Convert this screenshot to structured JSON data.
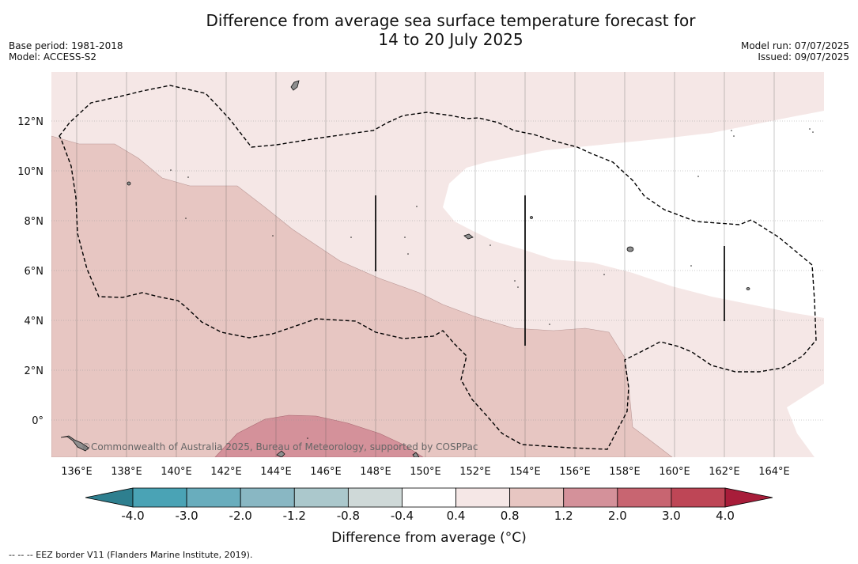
{
  "title_line1": "Difference from average sea surface temperature forecast for",
  "title_line2": "14 to 20 July 2025",
  "base_period": "Base period: 1981-2018",
  "model": "Model: ACCESS-S2",
  "model_run": "Model run: 07/07/2025",
  "issued": "Issued: 09/07/2025",
  "copyright": "©Commonwealth of Australia 2025, Bureau of Meteorology, supported by COSPPac",
  "colorbar": {
    "label": "Difference from average (°C)",
    "ticks": [
      "-4.0",
      "-3.0",
      "-2.0",
      "-1.2",
      "-0.8",
      "-0.4",
      "0.4",
      "0.8",
      "1.2",
      "2.0",
      "3.0",
      "4.0"
    ],
    "colors": [
      "#2e7f8f",
      "#4aa3b5",
      "#69adbd",
      "#89b7c3",
      "#abc8cc",
      "#cfd9d8",
      "#ffffff",
      "#f5e7e6",
      "#e7c6c2",
      "#d4919a",
      "#c86571",
      "#be4656",
      "#a81d3a"
    ]
  },
  "footnote": "--  --  -- EEZ border V11 (Flanders Marine Institute, 2019).",
  "axes": {
    "x_ticks": [
      "136°E",
      "138°E",
      "140°E",
      "142°E",
      "144°E",
      "146°E",
      "148°E",
      "150°E",
      "152°E",
      "154°E",
      "156°E",
      "158°E",
      "160°E",
      "162°E",
      "164°E"
    ],
    "y_ticks": [
      "12°N",
      "10°N",
      "8°N",
      "6°N",
      "4°N",
      "2°N",
      "0°"
    ]
  },
  "map": {
    "region": "Federated States of Micronesia / Western Pacific",
    "lon_range": [
      135,
      166
    ],
    "lat_range": [
      -1.5,
      14
    ]
  }
}
